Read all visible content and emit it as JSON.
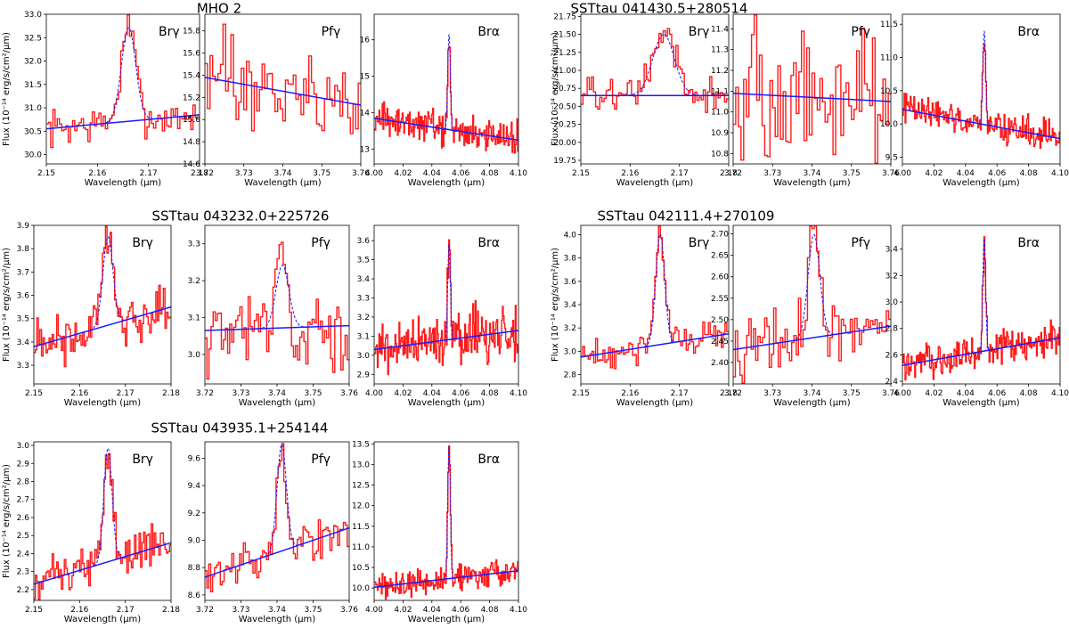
{
  "colors": {
    "data": "#ff1a1a",
    "fit": "#1a1aff",
    "gauss": "#1a1aff",
    "frame": "#000000"
  },
  "chart_data": [
    {
      "type": "line",
      "title": "MHO 2",
      "ylabel": "Flux (10⁻¹⁴ erg/s/cm²/μm)",
      "panels": [
        {
          "label": "Brγ",
          "xlabel": "Wavelength (μm)",
          "xlim": [
            2.15,
            2.18
          ],
          "ylim": [
            29.8,
            33.0
          ],
          "xticks": [
            2.15,
            2.16,
            2.17,
            2.18
          ],
          "yticks": [
            30.0,
            30.5,
            31.0,
            31.5,
            32.0,
            32.5,
            33.0
          ],
          "ydec": 1,
          "continuum": [
            30.55,
            30.85
          ],
          "peak_center": 2.1661,
          "peak_amp": 2.0,
          "peak_sigma": 0.0014,
          "noise": 0.35,
          "n": 70
        },
        {
          "label": "Pfγ",
          "xlabel": "Wavelength (μm)",
          "xlim": [
            3.72,
            3.76
          ],
          "ylim": [
            14.6,
            15.95
          ],
          "xticks": [
            3.72,
            3.73,
            3.74,
            3.75,
            3.76
          ],
          "yticks": [
            14.6,
            14.8,
            15.0,
            15.2,
            15.4,
            15.6,
            15.8
          ],
          "ydec": 1,
          "continuum": [
            15.38,
            15.13
          ],
          "peak_center": 3.7405,
          "peak_amp": 0.0,
          "peak_sigma": 0.001,
          "noise": 0.35,
          "n": 60
        },
        {
          "label": "Brα",
          "xlabel": "Wavelength (μm)",
          "xlim": [
            4.0,
            4.1
          ],
          "ylim": [
            12.6,
            16.7
          ],
          "xticks": [
            4.0,
            4.02,
            4.04,
            4.06,
            4.08,
            4.1
          ],
          "yticks": [
            13,
            14,
            15,
            16
          ],
          "ydec": 0,
          "continuum": [
            13.85,
            13.25
          ],
          "peak_center": 4.0519,
          "peak_amp": 2.6,
          "peak_sigma": 0.0009,
          "noise": 0.4,
          "n": 180
        }
      ]
    },
    {
      "type": "line",
      "title": "SSTtau 041430.5+280514",
      "ylabel": "Flux (10⁻¹⁴ erg/s/cm²/μm)",
      "panels": [
        {
          "label": "Brγ",
          "xlabel": "Wavelength (μm)",
          "xlim": [
            2.15,
            2.18
          ],
          "ylim": [
            19.7,
            21.78
          ],
          "xticks": [
            2.15,
            2.16,
            2.17,
            2.18
          ],
          "yticks": [
            19.75,
            20.0,
            20.25,
            20.5,
            20.75,
            21.0,
            21.25,
            21.5,
            21.75
          ],
          "ydec": 2,
          "continuum": [
            20.65,
            20.65
          ],
          "peak_center": 2.1668,
          "peak_amp": 0.85,
          "peak_sigma": 0.0022,
          "noise": 0.22,
          "n": 70
        },
        {
          "label": "Pfγ",
          "xlabel": "Wavelength (μm)",
          "xlim": [
            3.72,
            3.76
          ],
          "ylim": [
            10.75,
            11.47
          ],
          "xticks": [
            3.72,
            3.73,
            3.74,
            3.75,
            3.76
          ],
          "yticks": [
            10.8,
            10.9,
            11.0,
            11.1,
            11.2,
            11.3,
            11.4
          ],
          "ydec": 1,
          "continuum": [
            11.09,
            11.05
          ],
          "peak_center": 3.745,
          "peak_amp": 0.0,
          "peak_sigma": 0.001,
          "noise": 0.3,
          "n": 60
        },
        {
          "label": "Brα",
          "xlabel": "Wavelength (μm)",
          "xlim": [
            4.0,
            4.1
          ],
          "ylim": [
            9.4,
            11.65
          ],
          "xticks": [
            4.0,
            4.02,
            4.04,
            4.06,
            4.08,
            4.1
          ],
          "yticks": [
            9.5,
            10.0,
            10.5,
            11.0,
            11.5
          ],
          "ydec": 1,
          "continuum": [
            10.22,
            9.78
          ],
          "peak_center": 4.0519,
          "peak_amp": 1.4,
          "peak_sigma": 0.0009,
          "noise": 0.2,
          "n": 180
        }
      ]
    },
    {
      "type": "line",
      "title": "SSTtau 043232.0+225726",
      "ylabel": "Flux (10⁻¹⁴ erg/s/cm²/μm)",
      "panels": [
        {
          "label": "Brγ",
          "xlabel": "Wavelength (μm)",
          "xlim": [
            2.15,
            2.18
          ],
          "ylim": [
            3.22,
            3.9
          ],
          "xticks": [
            2.15,
            2.16,
            2.17,
            2.18
          ],
          "yticks": [
            3.3,
            3.4,
            3.5,
            3.6,
            3.7,
            3.8,
            3.9
          ],
          "ydec": 1,
          "continuum": [
            3.38,
            3.55
          ],
          "peak_center": 2.1662,
          "peak_amp": 0.38,
          "peak_sigma": 0.0011,
          "noise": 0.1,
          "n": 90
        },
        {
          "label": "Pfγ",
          "xlabel": "Wavelength (μm)",
          "xlim": [
            3.72,
            3.76
          ],
          "ylim": [
            2.92,
            3.35
          ],
          "xticks": [
            3.72,
            3.73,
            3.74,
            3.75,
            3.76
          ],
          "yticks": [
            3.0,
            3.1,
            3.2,
            3.3
          ],
          "ydec": 1,
          "continuum": [
            3.065,
            3.078
          ],
          "peak_center": 3.7415,
          "peak_amp": 0.17,
          "peak_sigma": 0.0018,
          "noise": 0.1,
          "n": 70
        },
        {
          "label": "Brα",
          "xlabel": "Wavelength (μm)",
          "xlim": [
            4.0,
            4.1
          ],
          "ylim": [
            2.85,
            3.68
          ],
          "xticks": [
            4.0,
            4.02,
            4.04,
            4.06,
            4.08,
            4.1
          ],
          "yticks": [
            2.9,
            3.0,
            3.1,
            3.2,
            3.3,
            3.4,
            3.5,
            3.6
          ],
          "ydec": 1,
          "continuum": [
            3.03,
            3.13
          ],
          "peak_center": 4.0519,
          "peak_amp": 0.5,
          "peak_sigma": 0.0009,
          "noise": 0.12,
          "n": 180
        }
      ]
    },
    {
      "type": "line",
      "title": "SSTtau 042111.4+270109",
      "ylabel": "Flux (10⁻¹⁴ erg/s/cm²/μm)",
      "panels": [
        {
          "label": "Brγ",
          "xlabel": "Wavelength (μm)",
          "xlim": [
            2.15,
            2.18
          ],
          "ylim": [
            2.72,
            4.08
          ],
          "xticks": [
            2.15,
            2.16,
            2.17,
            2.18
          ],
          "yticks": [
            2.8,
            3.0,
            3.2,
            3.4,
            3.6,
            3.8,
            4.0
          ],
          "ydec": 1,
          "continuum": [
            2.95,
            3.15
          ],
          "peak_center": 2.1661,
          "peak_amp": 0.95,
          "peak_sigma": 0.0009,
          "noise": 0.12,
          "n": 80
        },
        {
          "label": "Pfγ",
          "xlabel": "Wavelength (μm)",
          "xlim": [
            3.72,
            3.76
          ],
          "ylim": [
            2.35,
            2.72
          ],
          "xticks": [
            3.72,
            3.73,
            3.74,
            3.75,
            3.76
          ],
          "yticks": [
            2.4,
            2.45,
            2.5,
            2.55,
            2.6,
            2.65,
            2.7
          ],
          "ydec": 2,
          "continuum": [
            2.43,
            2.485
          ],
          "peak_center": 3.7405,
          "peak_amp": 0.24,
          "peak_sigma": 0.0015,
          "noise": 0.06,
          "n": 70
        },
        {
          "label": "Brα",
          "xlabel": "Wavelength (μm)",
          "xlim": [
            4.0,
            4.1
          ],
          "ylim": [
            2.38,
            3.58
          ],
          "xticks": [
            4.0,
            4.02,
            4.04,
            4.06,
            4.08,
            4.1
          ],
          "yticks": [
            2.4,
            2.6,
            2.8,
            3.0,
            3.2,
            3.4
          ],
          "ydec": 1,
          "continuum": [
            2.52,
            2.73
          ],
          "peak_center": 4.0519,
          "peak_amp": 0.85,
          "peak_sigma": 0.0009,
          "noise": 0.12,
          "n": 180
        }
      ]
    },
    {
      "type": "line",
      "title": "SSTtau 043935.1+254144",
      "ylabel": "Flux (10⁻¹⁴ erg/s/cm²/μm)",
      "panels": [
        {
          "label": "Brγ",
          "xlabel": "Wavelength (μm)",
          "xlim": [
            2.15,
            2.18
          ],
          "ylim": [
            2.14,
            3.02
          ],
          "xticks": [
            2.15,
            2.16,
            2.17,
            2.18
          ],
          "yticks": [
            2.2,
            2.3,
            2.4,
            2.5,
            2.6,
            2.7,
            2.8,
            2.9,
            3.0
          ],
          "ydec": 1,
          "continuum": [
            2.23,
            2.46
          ],
          "peak_center": 2.1662,
          "peak_amp": 0.63,
          "peak_sigma": 0.0009,
          "noise": 0.1,
          "n": 90
        },
        {
          "label": "Pfγ",
          "xlabel": "Wavelength (μm)",
          "xlim": [
            3.72,
            3.76
          ],
          "ylim": [
            8.56,
            9.72
          ],
          "xticks": [
            3.72,
            3.73,
            3.74,
            3.75,
            3.76
          ],
          "yticks": [
            8.6,
            8.8,
            9.0,
            9.2,
            9.4,
            9.6
          ],
          "ydec": 1,
          "continuum": [
            8.73,
            9.09
          ],
          "peak_center": 3.7413,
          "peak_amp": 0.78,
          "peak_sigma": 0.0013,
          "noise": 0.12,
          "n": 75
        },
        {
          "label": "Brα",
          "xlabel": "Wavelength (μm)",
          "xlim": [
            4.0,
            4.1
          ],
          "ylim": [
            9.7,
            13.55
          ],
          "xticks": [
            4.0,
            4.02,
            4.04,
            4.06,
            4.08,
            4.1
          ],
          "yticks": [
            10.0,
            10.5,
            11.0,
            11.5,
            12.0,
            12.5,
            13.0,
            13.5
          ],
          "ydec": 1,
          "continuum": [
            10.02,
            10.42
          ],
          "peak_center": 4.0519,
          "peak_amp": 3.2,
          "peak_sigma": 0.0009,
          "noise": 0.3,
          "n": 180
        }
      ]
    }
  ]
}
